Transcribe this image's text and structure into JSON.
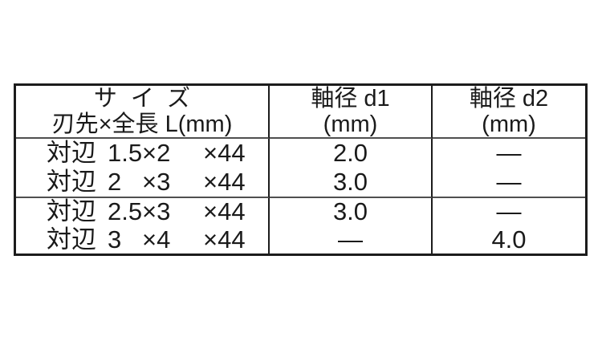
{
  "table": {
    "header": {
      "size_title": "サイズ",
      "size_subtitle": "刃先×全長 L(mm)",
      "d1_title": "軸径 d1",
      "d1_unit": "(mm)",
      "d2_title": "軸径 d2",
      "d2_unit": "(mm)"
    },
    "rows": [
      {
        "label": "対辺",
        "size": "1.5",
        "tip": "×2",
        "length": "×44",
        "d1": "2.0",
        "d2": "—"
      },
      {
        "label": "対辺",
        "size": "2",
        "tip": "×3",
        "length": "×44",
        "d1": "3.0",
        "d2": "—"
      },
      {
        "label": "対辺",
        "size": "2.5",
        "tip": "×3",
        "length": "×44",
        "d1": "3.0",
        "d2": "—"
      },
      {
        "label": "対辺",
        "size": "3",
        "tip": "×4",
        "length": "×44",
        "d1": "—",
        "d2": "4.0"
      }
    ],
    "colors": {
      "border_dark": "#1c1c1c",
      "border_light": "#4f4f4f",
      "text": "#1a1a1a",
      "background": "#ffffff"
    }
  }
}
